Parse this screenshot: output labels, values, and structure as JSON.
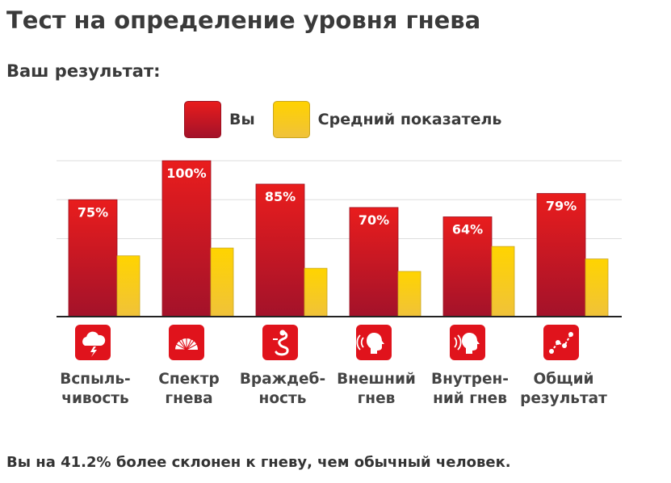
{
  "page": {
    "title": "Тест на определение уровня гнева",
    "result_label": "Ваш результат:",
    "footer": "Вы на 41.2% более склонен к гневу, чем обычный человек."
  },
  "colors": {
    "you": "#e0131c",
    "you_dark": "#a3122a",
    "average": "#f7cd1e",
    "grid": "#dddddd",
    "baseline": "#222222"
  },
  "chart_data": {
    "type": "bar",
    "categories": [
      "Вспыль-\nчивость",
      "Спектр\nгнева",
      "Враждеб-\nность",
      "Внешний\nгнев",
      "Внутрен-\nний гнев",
      "Общий\nрезультат"
    ],
    "category_icons": [
      "storm-cloud-icon",
      "spectrum-fan-icon",
      "snake-icon",
      "outward-anger-head-icon",
      "inward-anger-head-icon",
      "overall-graph-icon"
    ],
    "ylim": [
      0,
      100
    ],
    "grid": true,
    "legend": "top",
    "series": [
      {
        "name": "Вы",
        "values": [
          75,
          100,
          85,
          70,
          64,
          79
        ],
        "labels": [
          "75%",
          "100%",
          "85%",
          "70%",
          "64%",
          "79%"
        ]
      },
      {
        "name": "Средний показатель",
        "values": [
          39,
          44,
          31,
          29,
          45,
          37
        ]
      }
    ]
  }
}
